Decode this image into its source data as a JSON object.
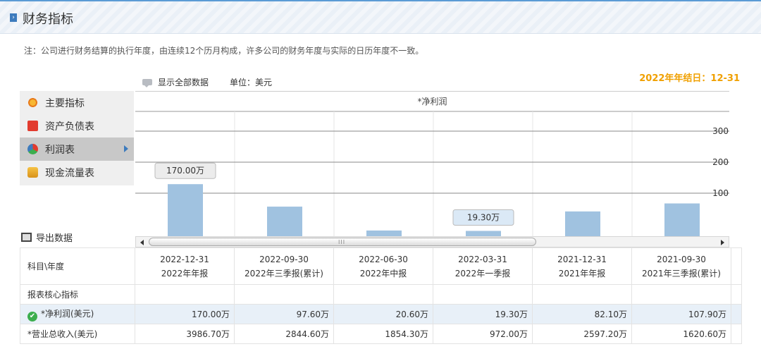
{
  "header": {
    "title": "财务指标"
  },
  "note": "注：公司进行财务结算的执行年度，由连续12个历月构成，许多公司的财务年度与实际的日历年度不一致。",
  "toolbar": {
    "show_all": "显示全部数据",
    "unit": "单位：美元"
  },
  "year_end": "2022年年结日：12-31",
  "sidebar": {
    "items": [
      {
        "label": "主要指标",
        "icon": "pie-icon"
      },
      {
        "label": "资产负债表",
        "icon": "document-icon"
      },
      {
        "label": "利润表",
        "icon": "chart-pie-icon",
        "active": true
      },
      {
        "label": "现金流量表",
        "icon": "coins-icon"
      }
    ]
  },
  "export_label": "导出数据",
  "chart_data": {
    "type": "bar",
    "title": "*净利润",
    "categories": [
      "2022-12-31",
      "2022-09-30",
      "2022-06-30",
      "2022-03-31",
      "2021-12-31",
      "2021-09-30"
    ],
    "values": [
      170.0,
      97.6,
      20.6,
      19.3,
      82.1,
      107.9
    ],
    "value_unit": "万",
    "yticks": [
      100,
      200,
      300
    ],
    "tooltips": [
      {
        "category": "2022-12-31",
        "text": "170.00万"
      },
      {
        "category": "2022-03-31",
        "text": "19.30万"
      }
    ],
    "bar_color": "#a0c2e0"
  },
  "table": {
    "corner": "科目\\年度",
    "columns": [
      {
        "date": "2022-12-31",
        "period": "2022年年报"
      },
      {
        "date": "2022-09-30",
        "period": "2022年三季报(累计)"
      },
      {
        "date": "2022-06-30",
        "period": "2022年中报"
      },
      {
        "date": "2022-03-31",
        "period": "2022年一季报"
      },
      {
        "date": "2021-12-31",
        "period": "2021年年报"
      },
      {
        "date": "2021-09-30",
        "period": "2021年三季报(累计)"
      }
    ],
    "section": "报表核心指标",
    "rows": [
      {
        "label": "*净利润(美元)",
        "values": [
          "170.00万",
          "97.60万",
          "20.60万",
          "19.30万",
          "82.10万",
          "107.90万"
        ],
        "selected": true
      },
      {
        "label": "*营业总收入(美元)",
        "values": [
          "3986.70万",
          "2844.60万",
          "1854.30万",
          "972.00万",
          "2597.20万",
          "1620.60万"
        ]
      }
    ]
  }
}
